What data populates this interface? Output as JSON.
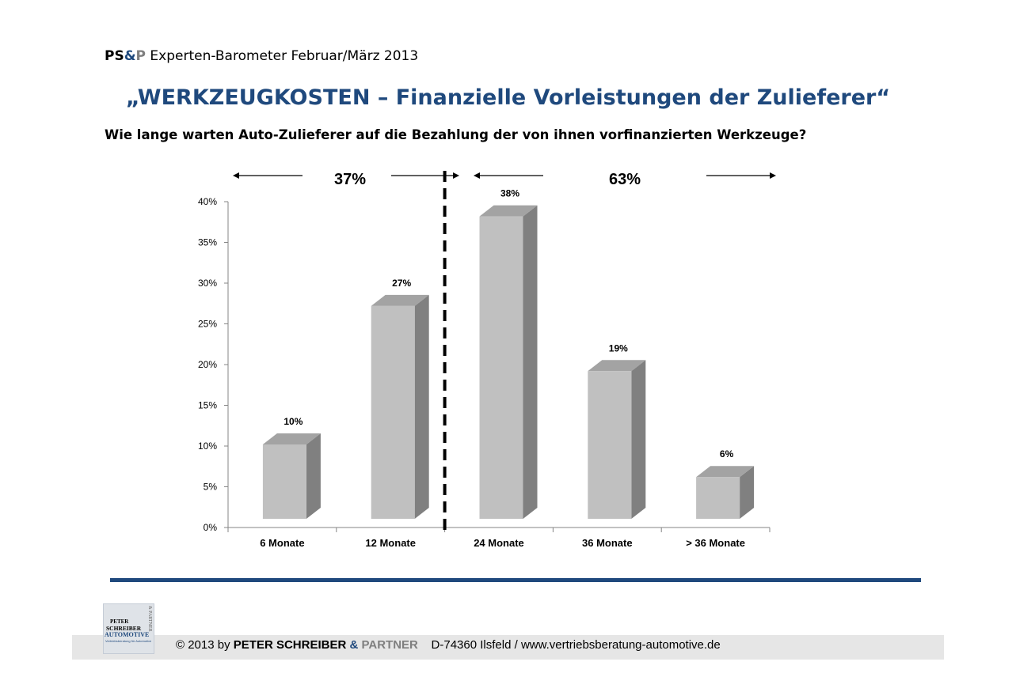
{
  "header": {
    "brand_ps": "PS",
    "brand_amp": "&",
    "brand_p": "P",
    "brand_rest": " Experten-Barometer Februar/März 2013",
    "title": "„WERKZEUGKOSTEN – Finanzielle Vorleistungen der Zulieferer“",
    "question": "Wie lange warten Auto-Zulieferer auf die Bezahlung der von ihnen vorfinanzierten Werkzeuge?"
  },
  "groups": {
    "left_label": "37%",
    "right_label": "63%"
  },
  "chart_data": {
    "type": "bar",
    "categories": [
      "6 Monate",
      "12 Monate",
      "24 Monate",
      "36 Monate",
      "> 36 Monate"
    ],
    "values": [
      10,
      27,
      38,
      19,
      6
    ],
    "data_labels": [
      "10%",
      "27%",
      "38%",
      "19%",
      "6%"
    ],
    "ylim": [
      0,
      40
    ],
    "y_ticks": [
      "0%",
      "5%",
      "10%",
      "15%",
      "20%",
      "25%",
      "30%",
      "35%",
      "40%"
    ],
    "three_d": true,
    "legend": "none",
    "divider_after_category": 1,
    "colors": {
      "bar_front": "#c0c0c0",
      "bar_side": "#808080",
      "bar_top": "#a3a3a3",
      "divider": "#000000"
    }
  },
  "footer": {
    "copyright": "© 2013 by ",
    "company_1": "PETER SCHREIBER ",
    "company_amp": "& ",
    "company_2": "PARTNER",
    "address": "    D-74360 Ilsfeld / www.vertriebsberatung-automotive.de",
    "logo_line1": "PETER",
    "logo_line2": "SCHREIBER",
    "logo_line3": "AUTOMOTIVE",
    "logo_line4": "Vertriebsberatung für Automotive",
    "logo_side": "& PARTNER"
  },
  "colors": {
    "accent": "#1f497d",
    "footer_bg": "#e6e6e6",
    "rule": "#1f497d"
  }
}
